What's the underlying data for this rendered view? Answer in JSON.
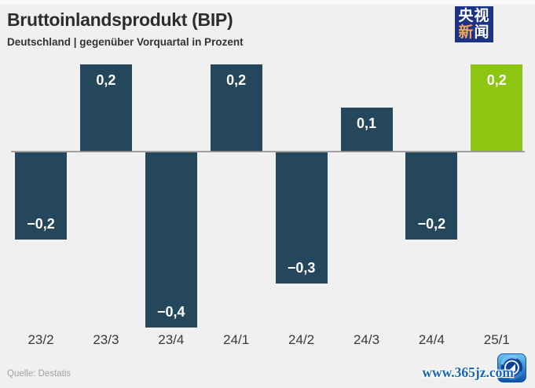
{
  "header": {
    "title": "Bruttoinlandsprodukt (BIP)",
    "subtitle": "Deutschland | gegenüber Vorquartal in Prozent",
    "logo": {
      "line1": "央视",
      "line2_orange": "新",
      "line2_white": "闻",
      "bg_color": "#1b3287",
      "orange_color": "#efa55e"
    }
  },
  "chart_data": {
    "type": "bar",
    "title": "Bruttoinlandsprodukt (BIP)",
    "subtitle": "Deutschland | gegenüber Vorquartal in Prozent",
    "categories": [
      "23/2",
      "23/3",
      "23/4",
      "24/1",
      "24/2",
      "24/3",
      "24/4",
      "25/1"
    ],
    "values": [
      -0.2,
      0.2,
      -0.4,
      0.2,
      -0.3,
      0.1,
      -0.2,
      0.2
    ],
    "value_labels": [
      "−0,2",
      "0,2",
      "−0,4",
      "0,2",
      "−0,3",
      "0,1",
      "−0,2",
      "0,2"
    ],
    "bar_colors": [
      "#24475c",
      "#24475c",
      "#24475c",
      "#24475c",
      "#24475c",
      "#24475c",
      "#24475c",
      "#8cc610"
    ],
    "xlabel": "",
    "ylabel": "",
    "ylim": [
      -0.45,
      0.25
    ],
    "grid": false,
    "legend": false,
    "baseline_value": 0,
    "baseline_color": "#8e8e8e",
    "label_position": "inside-end",
    "unit": "Prozent"
  },
  "footer": {
    "source": "Quelle: Destatis",
    "watermark": "www.365jz.com"
  }
}
